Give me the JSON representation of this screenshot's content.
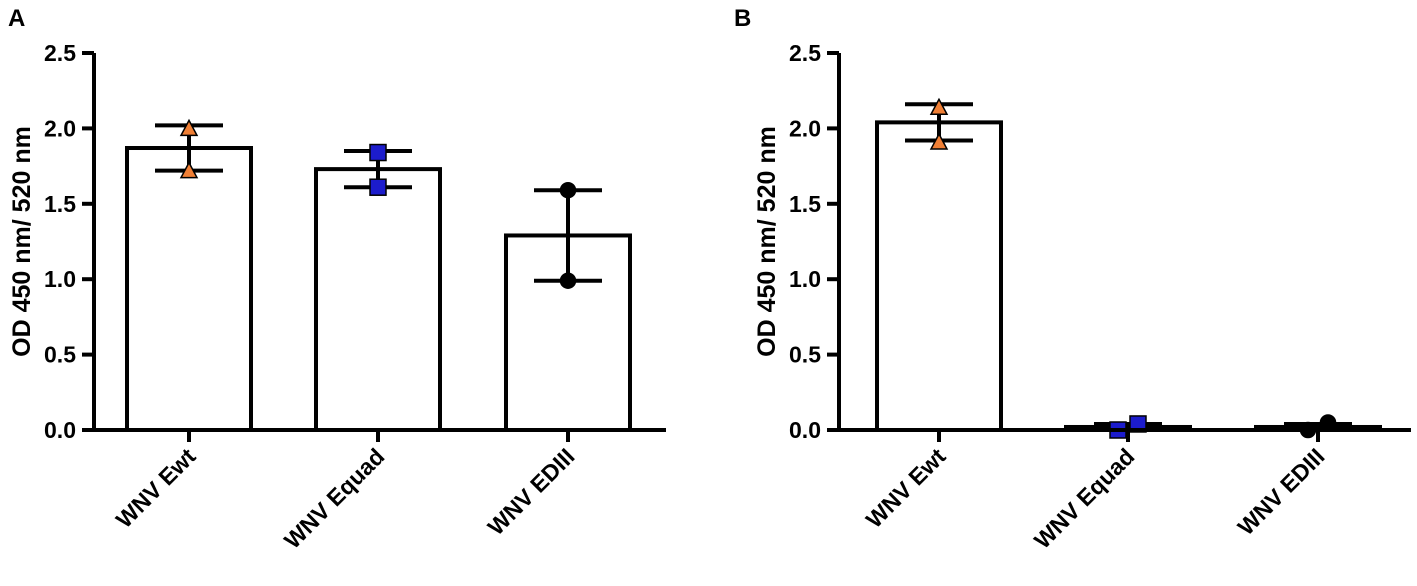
{
  "chart_data": [
    {
      "panel_label": "A",
      "type": "bar",
      "title": "",
      "xlabel": "",
      "ylabel": "OD 450 nm/ 520 nm",
      "ylim": [
        0,
        2.5
      ],
      "yticks": [
        "0.0",
        "0.5",
        "1.0",
        "1.5",
        "2.0",
        "2.5"
      ],
      "categories": [
        "WNV Ewt",
        "WNV Equad",
        "WNV EDIII"
      ],
      "values": [
        1.87,
        1.73,
        1.29
      ],
      "error_low": [
        1.72,
        1.61,
        0.99
      ],
      "error_high": [
        2.02,
        1.85,
        1.59
      ],
      "points": [
        [
          1.72,
          2.0
        ],
        [
          1.61,
          1.84
        ],
        [
          0.99,
          1.59
        ]
      ],
      "marker_shapes": [
        "triangle",
        "square",
        "circle"
      ],
      "marker_colors": [
        "#f07f35",
        "#1c1ccc",
        "#000000"
      ],
      "grid": false,
      "legend": "none"
    },
    {
      "panel_label": "B",
      "type": "bar",
      "title": "",
      "xlabel": "",
      "ylabel": "OD 450 nm/ 520 nm",
      "ylim": [
        0,
        2.5
      ],
      "yticks": [
        "0.0",
        "0.5",
        "1.0",
        "1.5",
        "2.0",
        "2.5"
      ],
      "categories": [
        "WNV Ewt",
        "WNV Equad",
        "WNV EDIII"
      ],
      "values": [
        2.04,
        0.02,
        0.02
      ],
      "error_low": [
        1.92,
        0.0,
        0.0
      ],
      "error_high": [
        2.16,
        0.04,
        0.04
      ],
      "points": [
        [
          1.91,
          2.14
        ],
        [
          0.0,
          0.04
        ],
        [
          0.0,
          0.05
        ]
      ],
      "marker_shapes": [
        "triangle",
        "square",
        "circle"
      ],
      "marker_colors": [
        "#f07f35",
        "#1c1ccc",
        "#000000"
      ],
      "grid": false,
      "legend": "none"
    }
  ]
}
